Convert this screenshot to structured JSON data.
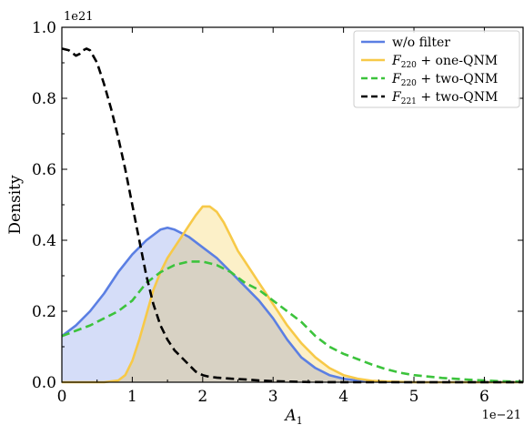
{
  "chart_data": {
    "type": "area",
    "xlabel_base": "A",
    "xlabel_sub": "1",
    "ylabel": "Density",
    "x_offset_label": "1e−21",
    "y_offset_label": "1e21",
    "xlim": [
      0,
      6.55
    ],
    "ylim": [
      0,
      1.0
    ],
    "x_ticks": [
      0,
      1,
      2,
      3,
      4,
      5,
      6
    ],
    "x_tick_labels": [
      "0",
      "1",
      "2",
      "3",
      "4",
      "5",
      "6"
    ],
    "y_ticks": [
      0.0,
      0.2,
      0.4,
      0.6,
      0.8,
      1.0
    ],
    "y_tick_labels": [
      "0.0",
      "0.2",
      "0.4",
      "0.6",
      "0.8",
      "1.0"
    ],
    "grid": false,
    "legend_position": "top-right",
    "series": [
      {
        "label_main": "w/o filter",
        "label_script": "",
        "label_sub": "",
        "color": "#5b7fe3",
        "fill": "#c7d2f6",
        "dash": false,
        "filled": true,
        "x": [
          0,
          0.2,
          0.4,
          0.6,
          0.8,
          1.0,
          1.2,
          1.4,
          1.5,
          1.6,
          1.8,
          2.0,
          2.2,
          2.4,
          2.6,
          2.8,
          3.0,
          3.2,
          3.4,
          3.6,
          3.8,
          4.0,
          4.2,
          4.4,
          4.6,
          4.8,
          5.0,
          6.55
        ],
        "y": [
          0.13,
          0.16,
          0.2,
          0.25,
          0.31,
          0.36,
          0.4,
          0.43,
          0.435,
          0.43,
          0.41,
          0.38,
          0.35,
          0.31,
          0.27,
          0.23,
          0.18,
          0.12,
          0.07,
          0.04,
          0.02,
          0.01,
          0.004,
          0.002,
          0.001,
          0.0005,
          0.0,
          0.0
        ]
      },
      {
        "label_main": " + one-QNM",
        "label_script": "F",
        "label_sub": "220",
        "color": "#f7c948",
        "fill": "#fbe9b0",
        "dash": false,
        "filled": true,
        "x": [
          0,
          0.6,
          0.8,
          0.9,
          1.0,
          1.1,
          1.2,
          1.3,
          1.4,
          1.5,
          1.6,
          1.7,
          1.8,
          1.9,
          2.0,
          2.1,
          2.2,
          2.3,
          2.4,
          2.5,
          2.6,
          2.8,
          3.0,
          3.2,
          3.4,
          3.6,
          3.8,
          4.0,
          4.2,
          4.4,
          4.6,
          5.0,
          6.55
        ],
        "y": [
          0.0,
          0.0,
          0.005,
          0.02,
          0.06,
          0.12,
          0.19,
          0.26,
          0.31,
          0.35,
          0.38,
          0.41,
          0.44,
          0.47,
          0.495,
          0.495,
          0.48,
          0.45,
          0.41,
          0.37,
          0.34,
          0.28,
          0.22,
          0.16,
          0.11,
          0.07,
          0.04,
          0.02,
          0.01,
          0.004,
          0.002,
          0.0,
          0.0
        ]
      },
      {
        "label_main": " + two-QNM",
        "label_script": "F",
        "label_sub": "220",
        "color": "#3cc33c",
        "fill": "none",
        "dash": true,
        "filled": false,
        "x": [
          0,
          0.2,
          0.4,
          0.6,
          0.8,
          1.0,
          1.2,
          1.4,
          1.6,
          1.8,
          2.0,
          2.2,
          2.4,
          2.6,
          2.8,
          3.0,
          3.2,
          3.4,
          3.6,
          3.8,
          4.0,
          4.2,
          4.4,
          4.6,
          4.8,
          5.0,
          5.4,
          5.8,
          6.2,
          6.55
        ],
        "y": [
          0.13,
          0.145,
          0.16,
          0.18,
          0.2,
          0.23,
          0.28,
          0.31,
          0.33,
          0.34,
          0.34,
          0.33,
          0.31,
          0.28,
          0.26,
          0.23,
          0.2,
          0.17,
          0.13,
          0.1,
          0.08,
          0.065,
          0.05,
          0.037,
          0.027,
          0.02,
          0.012,
          0.007,
          0.003,
          0.001
        ]
      },
      {
        "label_main": " + two-QNM",
        "label_script": "F",
        "label_sub": "221",
        "color": "#000000",
        "fill": "none",
        "dash": true,
        "filled": false,
        "x": [
          0,
          0.1,
          0.2,
          0.25,
          0.3,
          0.35,
          0.4,
          0.5,
          0.6,
          0.7,
          0.8,
          0.9,
          1.0,
          1.1,
          1.2,
          1.3,
          1.4,
          1.5,
          1.6,
          1.7,
          1.8,
          1.9,
          2.0,
          2.1,
          2.2,
          2.4,
          2.6,
          2.8,
          3.0,
          3.2,
          3.5,
          4.0,
          6.55
        ],
        "y": [
          0.94,
          0.935,
          0.92,
          0.925,
          0.935,
          0.94,
          0.935,
          0.9,
          0.84,
          0.77,
          0.69,
          0.6,
          0.5,
          0.4,
          0.3,
          0.22,
          0.16,
          0.12,
          0.09,
          0.07,
          0.05,
          0.03,
          0.02,
          0.015,
          0.013,
          0.01,
          0.008,
          0.005,
          0.003,
          0.002,
          0.0005,
          0.0,
          0.0
        ]
      }
    ]
  }
}
